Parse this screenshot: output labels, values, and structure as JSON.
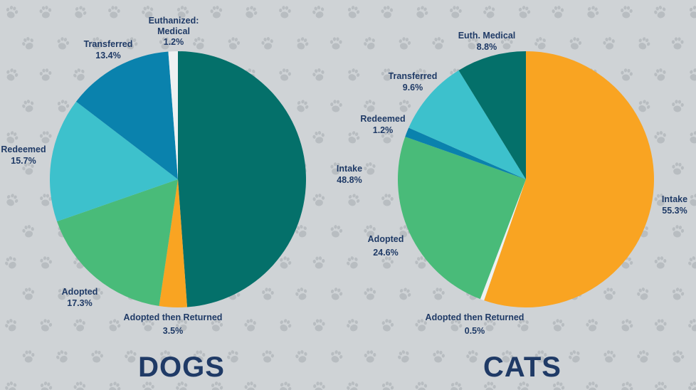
{
  "chart_data": [
    {
      "type": "pie",
      "title": "DOGS",
      "slices": [
        {
          "label": "Intake",
          "value": 48.8,
          "value_label": "48.8%",
          "color": "#04706a"
        },
        {
          "label": "Adopted then Returned",
          "value": 3.5,
          "value_label": "3.5%",
          "color": "#f9a422"
        },
        {
          "label": "Adopted",
          "value": 17.3,
          "value_label": "17.3%",
          "color": "#49bb79"
        },
        {
          "label": "Redeemed",
          "value": 15.7,
          "value_label": "15.7%",
          "color": "#3dc1cc"
        },
        {
          "label": "Transferred",
          "value": 13.4,
          "value_label": "13.4%",
          "color": "#0a82ad"
        },
        {
          "label": "Euthanized: Medical",
          "value": 1.2,
          "value_label": "1.2%",
          "color": "#eef1f2"
        }
      ]
    },
    {
      "type": "pie",
      "title": "CATS",
      "slices": [
        {
          "label": "Intake",
          "value": 55.3,
          "value_label": "55.3%",
          "color": "#f9a422"
        },
        {
          "label": "Adopted then Returned",
          "value": 0.5,
          "value_label": "0.5%",
          "color": "#eef1f2"
        },
        {
          "label": "Adopted",
          "value": 24.6,
          "value_label": "24.6%",
          "color": "#49bb79"
        },
        {
          "label": "Redeemed",
          "value": 1.2,
          "value_label": "1.2%",
          "color": "#0a82ad"
        },
        {
          "label": "Transferred",
          "value": 9.6,
          "value_label": "9.6%",
          "color": "#3dc1cc"
        },
        {
          "label": "Euth. Medical",
          "value": 8.8,
          "value_label": "8.8%",
          "color": "#04706a"
        }
      ]
    }
  ],
  "colors": {
    "background": "#cfd3d6",
    "paw_pattern": "#b8bdc1",
    "text": "#1f3a66"
  }
}
